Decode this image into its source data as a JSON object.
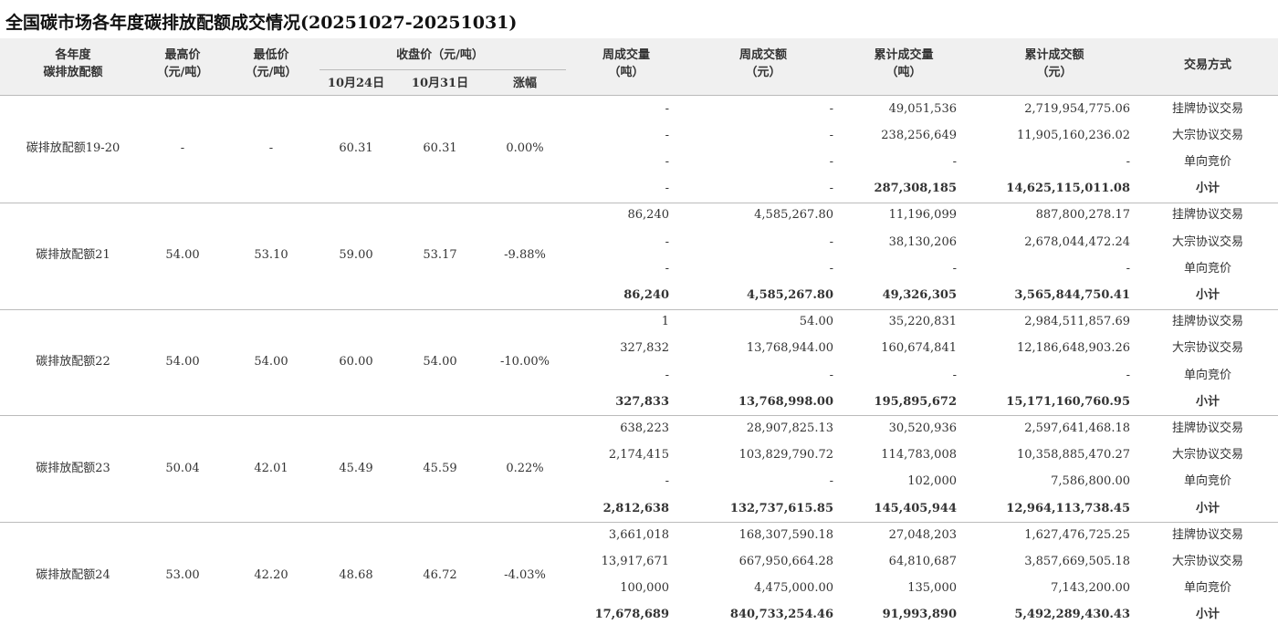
{
  "title": "全国碳市场各年度碳排放配额成交情况(20251027-20251031)",
  "header": {
    "year": [
      "各年度",
      "碳排放配额"
    ],
    "max_price": [
      "最高价",
      "（元/吨）"
    ],
    "min_price": [
      "最低价",
      "（元/吨）"
    ],
    "close_price": "收盘价（元/吨）",
    "close_dates": [
      "10月24日",
      "10月31日"
    ],
    "change": "涨幅",
    "weekly_volume": [
      "周成交量",
      "（吨）"
    ],
    "weekly_amount": [
      "周成交额",
      "（元）"
    ],
    "cum_volume": [
      "累计成交量",
      "（吨）"
    ],
    "cum_amount": [
      "累计成交额",
      "（元）"
    ],
    "method": "交易方式"
  },
  "groups": [
    {
      "name": "碳排放配额19-20",
      "max": "-",
      "min": "-",
      "close_1024": "60.31",
      "close_1031": "60.31",
      "change": "0.00%",
      "rows": [
        [
          "-",
          "-",
          "49,051,536",
          "2,719,954,775.06",
          "挂牌协议交易"
        ],
        [
          "-",
          "-",
          "238,256,649",
          "11,905,160,236.02",
          "大宗协议交易"
        ],
        [
          "-",
          "-",
          "-",
          "-",
          "单向竞价"
        ],
        [
          "-",
          "-",
          "287,308,185",
          "14,625,115,011.08",
          "小计"
        ]
      ]
    },
    {
      "name": "碳排放配额21",
      "max": "54.00",
      "min": "53.10",
      "close_1024": "59.00",
      "close_1031": "53.17",
      "change": "-9.88%",
      "rows": [
        [
          "86,240",
          "4,585,267.80",
          "11,196,099",
          "887,800,278.17",
          "挂牌协议交易"
        ],
        [
          "-",
          "-",
          "38,130,206",
          "2,678,044,472.24",
          "大宗协议交易"
        ],
        [
          "-",
          "-",
          "-",
          "-",
          "单向竞价"
        ],
        [
          "86,240",
          "4,585,267.80",
          "49,326,305",
          "3,565,844,750.41",
          "小计"
        ]
      ]
    },
    {
      "name": "碳排放配额22",
      "max": "54.00",
      "min": "54.00",
      "close_1024": "60.00",
      "close_1031": "54.00",
      "change": "-10.00%",
      "rows": [
        [
          "1",
          "54.00",
          "35,220,831",
          "2,984,511,857.69",
          "挂牌协议交易"
        ],
        [
          "327,832",
          "13,768,944.00",
          "160,674,841",
          "12,186,648,903.26",
          "大宗协议交易"
        ],
        [
          "-",
          "-",
          "-",
          "-",
          "单向竞价"
        ],
        [
          "327,833",
          "13,768,998.00",
          "195,895,672",
          "15,171,160,760.95",
          "小计"
        ]
      ]
    },
    {
      "name": "碳排放配额23",
      "max": "50.04",
      "min": "42.01",
      "close_1024": "45.49",
      "close_1031": "45.59",
      "change": "0.22%",
      "rows": [
        [
          "638,223",
          "28,907,825.13",
          "30,520,936",
          "2,597,641,468.18",
          "挂牌协议交易"
        ],
        [
          "2,174,415",
          "103,829,790.72",
          "114,783,008",
          "10,358,885,470.27",
          "大宗协议交易"
        ],
        [
          "-",
          "-",
          "102,000",
          "7,586,800.00",
          "单向竞价"
        ],
        [
          "2,812,638",
          "132,737,615.85",
          "145,405,944",
          "12,964,113,738.45",
          "小计"
        ]
      ]
    },
    {
      "name": "碳排放配额24",
      "max": "53.00",
      "min": "42.20",
      "close_1024": "48.68",
      "close_1031": "46.72",
      "change": "-4.03%",
      "rows": [
        [
          "3,661,018",
          "168,307,590.18",
          "27,048,203",
          "1,627,476,725.25",
          "挂牌协议交易"
        ],
        [
          "13,917,671",
          "667,950,664.28",
          "64,810,687",
          "3,857,669,505.18",
          "大宗协议交易"
        ],
        [
          "100,000",
          "4,475,000.00",
          "135,000",
          "7,143,200.00",
          "单向竞价"
        ],
        [
          "17,678,689",
          "840,733,254.46",
          "91,993,890",
          "5,492,289,430.43",
          "小计"
        ]
      ]
    }
  ]
}
